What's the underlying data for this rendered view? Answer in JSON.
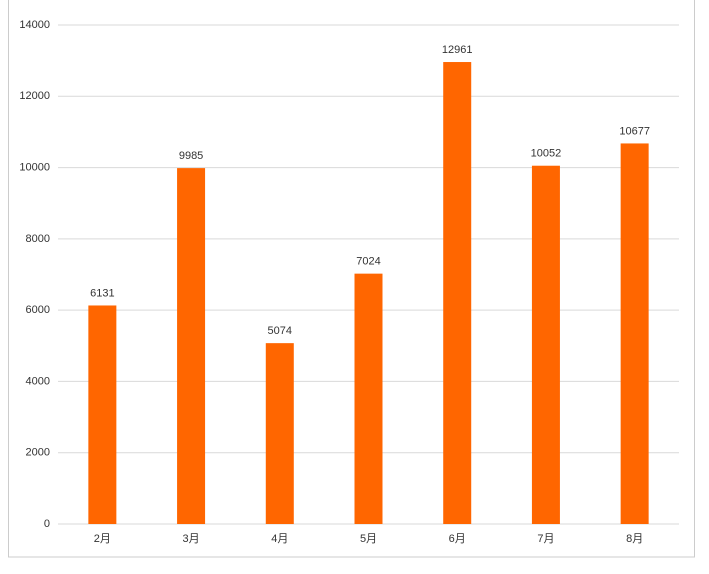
{
  "chart_data": {
    "type": "bar",
    "categories": [
      "2月",
      "3月",
      "4月",
      "5月",
      "6月",
      "7月",
      "8月"
    ],
    "values": [
      6131,
      9985,
      5074,
      7024,
      12961,
      10052,
      10677
    ],
    "color": "#ff6600",
    "ylim": [
      0,
      14000
    ],
    "yticks": [
      0,
      2000,
      4000,
      6000,
      8000,
      10000,
      12000,
      14000
    ],
    "grid": true
  }
}
